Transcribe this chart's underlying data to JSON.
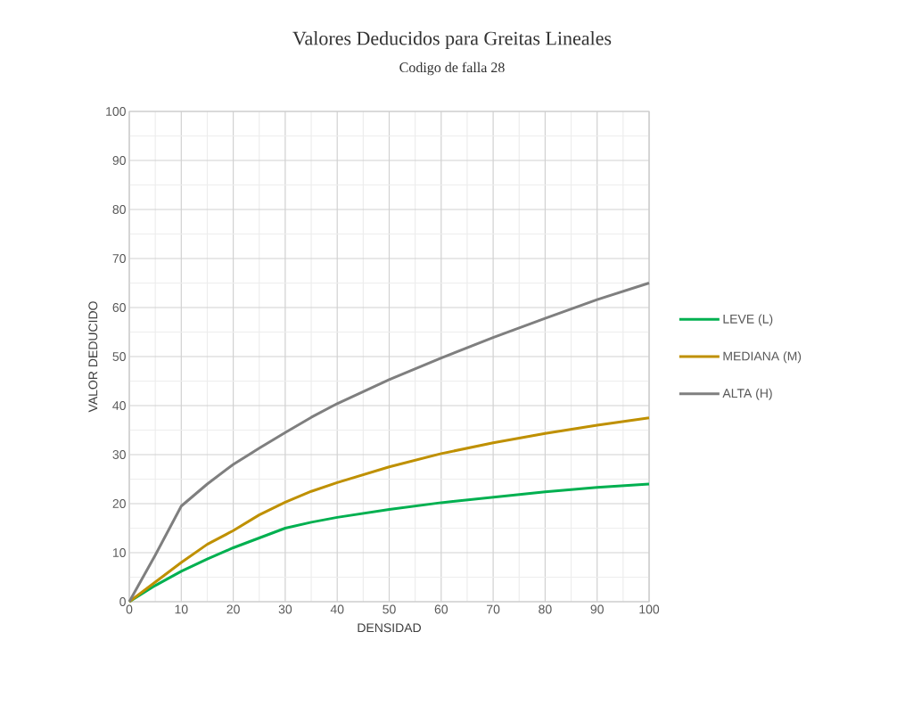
{
  "chart_data": {
    "type": "line",
    "title": "Valores Deducidos para Greitas Lineales",
    "subtitle": "Codigo de falla  28",
    "xlabel": "DENSIDAD",
    "ylabel": "VALOR DEDUCIDO",
    "x": [
      0,
      5,
      10,
      15,
      20,
      25,
      30,
      35,
      40,
      50,
      60,
      70,
      80,
      90,
      100
    ],
    "series": [
      {
        "name": "LEVE (L)",
        "color": "#00b050",
        "values": [
          0,
          3.3,
          6.2,
          8.7,
          11,
          13,
          15,
          16.2,
          17.2,
          18.8,
          20.2,
          21.3,
          22.4,
          23.3,
          24
        ]
      },
      {
        "name": "MEDIANA (M)",
        "color": "#bf9000",
        "values": [
          0,
          4,
          8,
          11.7,
          14.5,
          17.7,
          20.3,
          22.5,
          24.3,
          27.5,
          30.2,
          32.4,
          34.3,
          36,
          37.5
        ]
      },
      {
        "name": "ALTA (H)",
        "color": "#7f7f7f",
        "values": [
          0,
          9.5,
          19.5,
          24,
          28,
          31.3,
          34.5,
          37.6,
          40.4,
          45.3,
          49.7,
          53.9,
          57.8,
          61.6,
          65
        ]
      }
    ],
    "xlim": [
      0,
      100
    ],
    "ylim": [
      0,
      100
    ],
    "xticks": [
      0,
      10,
      20,
      30,
      40,
      50,
      60,
      70,
      80,
      90,
      100
    ],
    "yticks": [
      0,
      10,
      20,
      30,
      40,
      50,
      60,
      70,
      80,
      90,
      100
    ],
    "grid": true,
    "legend": "right",
    "marker": "none",
    "line_style": "solid"
  }
}
